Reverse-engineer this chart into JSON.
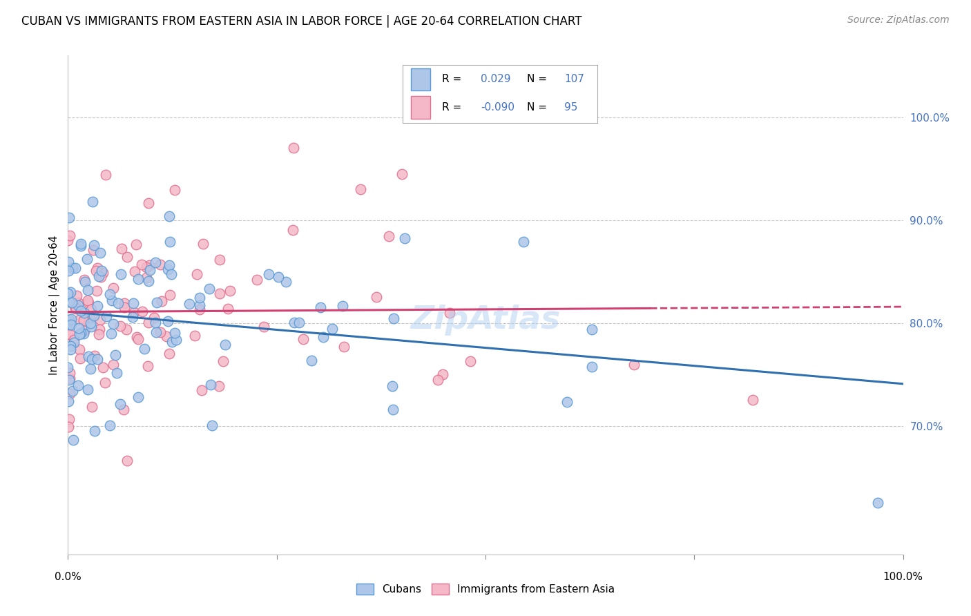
{
  "title": "CUBAN VS IMMIGRANTS FROM EASTERN ASIA IN LABOR FORCE | AGE 20-64 CORRELATION CHART",
  "source": "Source: ZipAtlas.com",
  "ylabel": "In Labor Force | Age 20-64",
  "right_ytick_labels": [
    "100.0%",
    "90.0%",
    "80.0%",
    "70.0%"
  ],
  "right_ytick_values": [
    1.0,
    0.9,
    0.8,
    0.7
  ],
  "legend_label1": "Cubans",
  "legend_label2": "Immigrants from Eastern Asia",
  "r1": 0.029,
  "n1": 107,
  "r2": -0.09,
  "n2": 95,
  "blue_fill": "#aec6e8",
  "blue_edge": "#5b9bd5",
  "pink_fill": "#f4b8c8",
  "pink_edge": "#e07090",
  "blue_line_color": "#3070b0",
  "pink_line_color": "#d04070",
  "axis_color": "#4472c4",
  "grid_color": "#c8c8c8",
  "background_color": "#ffffff",
  "title_fontsize": 12,
  "source_fontsize": 10,
  "xlim": [
    0.0,
    1.0
  ],
  "ylim": [
    0.575,
    1.06
  ],
  "seed1": 42,
  "seed2": 123
}
